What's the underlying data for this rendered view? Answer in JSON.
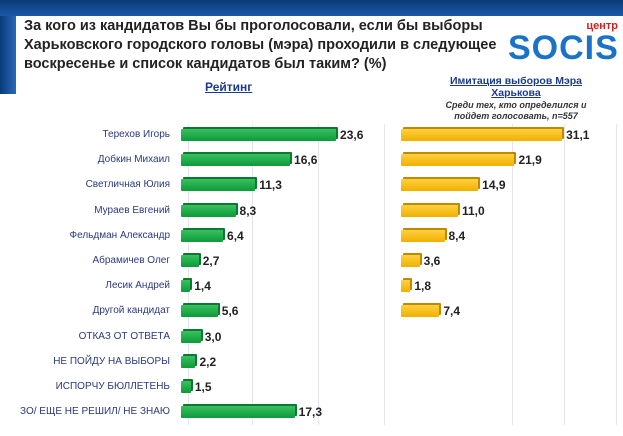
{
  "header": {
    "title": "За кого из кандидатов Вы бы проголосовали, если бы выборы Харьковского городского головы (мэра) проходили в следующее воскресенье и список кандидатов был таким? (%)",
    "logo_top": "центр",
    "logo_main": "SOCIS"
  },
  "chart_data": [
    {
      "type": "bar",
      "orientation": "horizontal",
      "title": "Рейтинг",
      "color": "#19a84a",
      "categories": [
        "Терехов Игорь",
        "Добкин Михаил",
        "Светличная Юлия",
        "Мураев Евгений",
        "Фельдман Александр",
        "Абрамичев Олег",
        "Лесик Андрей",
        "Другой кандидат",
        "ОТКАЗ ОТ ОТВЕТА",
        "НЕ ПОЙДУ НА ВЫБОРЫ",
        "ИСПОРЧУ БЮЛЛЕТЕНЬ",
        "ЗО/ ЕЩЕ НЕ РЕШИЛ/ НЕ ЗНАЮ"
      ],
      "values": [
        23.6,
        16.6,
        11.3,
        8.3,
        6.4,
        2.7,
        1.4,
        5.6,
        3.0,
        2.2,
        1.5,
        17.3
      ],
      "labels": [
        "23,6",
        "16,6",
        "11,3",
        "8,3",
        "6,4",
        "2,7",
        "1,4",
        "5,6",
        "3,0",
        "2,2",
        "1,5",
        "17,3"
      ]
    },
    {
      "type": "bar",
      "orientation": "horizontal",
      "title": "Имитация выборов Мэра Харькова",
      "subtitle": "Среди тех, кто определился и пойдет голосовать, n=557",
      "color": "#f5b800",
      "categories": [
        "Терехов Игорь",
        "Добкин Михаил",
        "Светличная Юлия",
        "Мураев Евгений",
        "Фельдман Александр",
        "Абрамичев Олег",
        "Лесик Андрей",
        "Другой кандидат"
      ],
      "values": [
        31.1,
        21.9,
        14.9,
        11.0,
        8.4,
        3.6,
        1.8,
        7.4
      ],
      "labels": [
        "31,1",
        "21,9",
        "14,9",
        "11,0",
        "8,4",
        "3,6",
        "1,8",
        "7,4"
      ]
    }
  ]
}
